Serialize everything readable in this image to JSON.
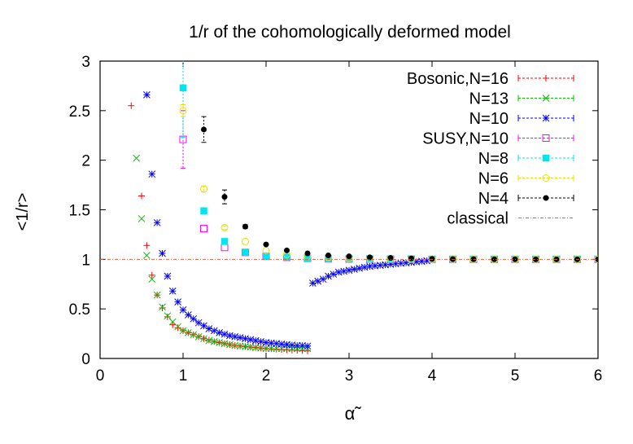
{
  "chart_data": {
    "type": "scatter",
    "title": "1/r of the cohomologically deformed model",
    "xlabel": "α̃",
    "ylabel": "<1/r>",
    "xlim": [
      0,
      6
    ],
    "ylim": [
      0,
      3
    ],
    "x_ticks": [
      {
        "value": 0,
        "label": "0"
      },
      {
        "value": 1,
        "label": "1"
      },
      {
        "value": 2,
        "label": "2"
      },
      {
        "value": 3,
        "label": "3"
      },
      {
        "value": 4,
        "label": "4"
      },
      {
        "value": 5,
        "label": "5"
      },
      {
        "value": 6,
        "label": "6"
      }
    ],
    "y_ticks": [
      {
        "value": 0,
        "label": "0"
      },
      {
        "value": 0.5,
        "label": "0.5"
      },
      {
        "value": 1,
        "label": "1"
      },
      {
        "value": 1.5,
        "label": "1.5"
      },
      {
        "value": 2,
        "label": "2"
      },
      {
        "value": 2.5,
        "label": "2.5"
      },
      {
        "value": 3,
        "label": "3"
      }
    ],
    "grid": false,
    "legend_position": "top-right",
    "series": [
      {
        "name": "Bosonic,N=16",
        "color": "#ff0000",
        "marker": "plus",
        "x": [
          0.375,
          0.5,
          0.5625,
          0.625,
          0.6875,
          0.75,
          0.8125,
          0.875,
          0.9375,
          1.0,
          1.0625,
          1.125,
          1.1875,
          1.25,
          1.3125,
          1.375,
          1.4375,
          1.5,
          1.5625,
          1.625,
          1.6875,
          1.75,
          1.8125,
          1.875,
          1.9375,
          2.0,
          2.0625,
          2.125,
          2.1875,
          2.25,
          2.3125,
          2.375,
          2.4375,
          2.5
        ],
        "y": [
          2.55,
          1.64,
          1.14,
          0.84,
          0.64,
          0.51,
          0.42,
          0.34,
          0.31,
          0.28,
          0.26,
          0.24,
          0.22,
          0.2,
          0.185,
          0.17,
          0.16,
          0.15,
          0.14,
          0.13,
          0.125,
          0.12,
          0.115,
          0.11,
          0.105,
          0.1,
          0.097,
          0.094,
          0.091,
          0.088,
          0.085,
          0.082,
          0.079,
          0.076
        ]
      },
      {
        "name": "N=13",
        "color": "#00c000",
        "marker": "cross",
        "x": [
          0.4375,
          0.5,
          0.5625,
          0.625,
          0.6875,
          0.75,
          0.8125,
          0.875,
          0.9375,
          1.0,
          1.0625,
          1.125,
          1.1875,
          1.25,
          1.3125,
          1.375,
          1.4375,
          1.5,
          1.5625,
          1.625,
          1.6875,
          1.75,
          1.8125,
          1.875,
          1.9375,
          2.0,
          2.0625,
          2.125,
          2.1875,
          2.25,
          2.3125,
          2.375,
          2.4375,
          2.5
        ],
        "y": [
          2.02,
          1.41,
          1.04,
          0.8,
          0.64,
          0.52,
          0.43,
          0.37,
          0.32,
          0.28,
          0.26,
          0.24,
          0.22,
          0.2,
          0.18,
          0.17,
          0.16,
          0.15,
          0.14,
          0.13,
          0.125,
          0.12,
          0.115,
          0.11,
          0.105,
          0.1,
          0.1,
          0.1,
          0.1,
          0.1,
          0.1,
          0.1,
          0.1,
          0.1
        ]
      },
      {
        "name": "N=10",
        "color": "#0000ff",
        "marker": "star",
        "x": [
          0.5625,
          0.625,
          0.6875,
          0.75,
          0.8125,
          0.875,
          0.9375,
          1.0,
          1.0625,
          1.125,
          1.1875,
          1.25,
          1.3125,
          1.375,
          1.4375,
          1.5,
          1.5625,
          1.625,
          1.6875,
          1.75,
          1.8125,
          1.875,
          1.9375,
          2.0,
          2.0625,
          2.125,
          2.1875,
          2.25,
          2.3125,
          2.375,
          2.4375,
          2.5,
          2.5625,
          2.625,
          2.6875,
          2.75,
          2.8125,
          2.875,
          2.9375,
          3.0,
          3.0625,
          3.125,
          3.1875,
          3.25,
          3.3125,
          3.375,
          3.4375,
          3.5,
          3.5625,
          3.625,
          3.6875,
          3.75,
          3.8125,
          3.875,
          3.9375
        ],
        "y": [
          2.66,
          1.86,
          1.37,
          1.06,
          0.83,
          0.68,
          0.57,
          0.49,
          0.44,
          0.4,
          0.36,
          0.33,
          0.3,
          0.28,
          0.26,
          0.245,
          0.23,
          0.22,
          0.21,
          0.2,
          0.19,
          0.18,
          0.17,
          0.16,
          0.155,
          0.15,
          0.145,
          0.14,
          0.135,
          0.13,
          0.13,
          0.125,
          0.76,
          0.78,
          0.8,
          0.83,
          0.85,
          0.87,
          0.88,
          0.89,
          0.9,
          0.91,
          0.92,
          0.93,
          0.935,
          0.94,
          0.945,
          0.95,
          0.955,
          0.96,
          0.965,
          0.97,
          0.975,
          0.98,
          0.985
        ]
      },
      {
        "name": "SUSY,N=10",
        "color": "#ff00ff",
        "marker": "square-open",
        "x": [
          1.0,
          1.25,
          1.5,
          1.75,
          2.0,
          2.25,
          2.5,
          2.75,
          3.0,
          3.25,
          3.5,
          3.75,
          4.0,
          4.25,
          4.5,
          4.75,
          5.0,
          5.25,
          5.5,
          5.75,
          6.0
        ],
        "y": [
          2.21,
          1.31,
          1.12,
          1.07,
          1.03,
          1.02,
          1.01,
          1.005,
          1.003,
          1.002,
          1.001,
          1.001,
          1.0,
          1.0,
          1.0,
          1.0,
          1.0,
          1.0,
          1.0,
          1.0,
          1.0
        ],
        "err": [
          0.29,
          0.0,
          0.0,
          0.0,
          0.0,
          0.0,
          0.0,
          0.0,
          0.0,
          0.0,
          0.0,
          0.0,
          0.0,
          0.0,
          0.0,
          0.0,
          0.0,
          0.0,
          0.0,
          0.0,
          0.0
        ]
      },
      {
        "name": "N=8",
        "color": "#00e5ee",
        "marker": "square-filled",
        "x": [
          1.0,
          1.25,
          1.5,
          1.75,
          2.0,
          2.25,
          2.5,
          2.75,
          3.0,
          3.25,
          3.5,
          3.75,
          4.0,
          4.25,
          4.5,
          4.75,
          5.0,
          5.25,
          5.5,
          5.75,
          6.0
        ],
        "y": [
          2.73,
          1.49,
          1.18,
          1.07,
          1.03,
          1.02,
          1.01,
          1.005,
          1.003,
          1.002,
          1.001,
          1.001,
          1.0,
          1.0,
          1.0,
          1.0,
          1.0,
          1.0,
          1.0,
          1.0,
          1.0
        ],
        "err": [
          0.5,
          0.0,
          0.0,
          0.0,
          0.0,
          0.0,
          0.0,
          0.0,
          0.0,
          0.0,
          0.0,
          0.0,
          0.0,
          0.0,
          0.0,
          0.0,
          0.0,
          0.0,
          0.0,
          0.0,
          0.0
        ]
      },
      {
        "name": "N=6",
        "color": "#e5e500",
        "marker": "circle-open",
        "x": [
          1.0,
          1.25,
          1.5,
          1.75,
          2.0,
          2.25,
          2.5,
          2.75,
          3.0,
          3.25,
          3.5,
          3.75,
          4.0,
          4.25,
          4.5,
          4.75,
          5.0,
          5.25,
          5.5,
          5.75,
          6.0
        ],
        "y": [
          2.5,
          1.71,
          1.32,
          1.18,
          1.09,
          1.05,
          1.03,
          1.02,
          1.01,
          1.005,
          1.003,
          1.002,
          1.001,
          1.001,
          1.0,
          1.0,
          1.0,
          1.0,
          1.0,
          1.0,
          1.0
        ],
        "err": [
          0.06,
          0.03,
          0.02,
          0.0,
          0.0,
          0.0,
          0.0,
          0.0,
          0.0,
          0.0,
          0.0,
          0.0,
          0.0,
          0.0,
          0.0,
          0.0,
          0.0,
          0.0,
          0.0,
          0.0,
          0.0
        ]
      },
      {
        "name": "N=4",
        "color": "#000000",
        "marker": "circle-filled",
        "x": [
          1.25,
          1.5,
          1.75,
          2.0,
          2.25,
          2.5,
          2.75,
          3.0,
          3.25,
          3.5,
          3.75,
          4.0,
          4.25,
          4.5,
          4.75,
          5.0,
          5.25,
          5.5,
          5.75,
          6.0
        ],
        "y": [
          2.31,
          1.63,
          1.33,
          1.15,
          1.09,
          1.06,
          1.04,
          1.03,
          1.02,
          1.015,
          1.01,
          1.005,
          1.003,
          1.002,
          1.001,
          1.001,
          1.0,
          1.0,
          1.0,
          1.0
        ],
        "err": [
          0.13,
          0.07,
          0.02,
          0.01,
          0.0,
          0.0,
          0.0,
          0.0,
          0.0,
          0.0,
          0.0,
          0.0,
          0.0,
          0.0,
          0.0,
          0.0,
          0.0,
          0.0,
          0.0,
          0.0
        ]
      },
      {
        "name": "classical",
        "color": "#e06040",
        "marker": "line",
        "x": [
          0,
          6
        ],
        "y": [
          1,
          1
        ]
      }
    ]
  }
}
